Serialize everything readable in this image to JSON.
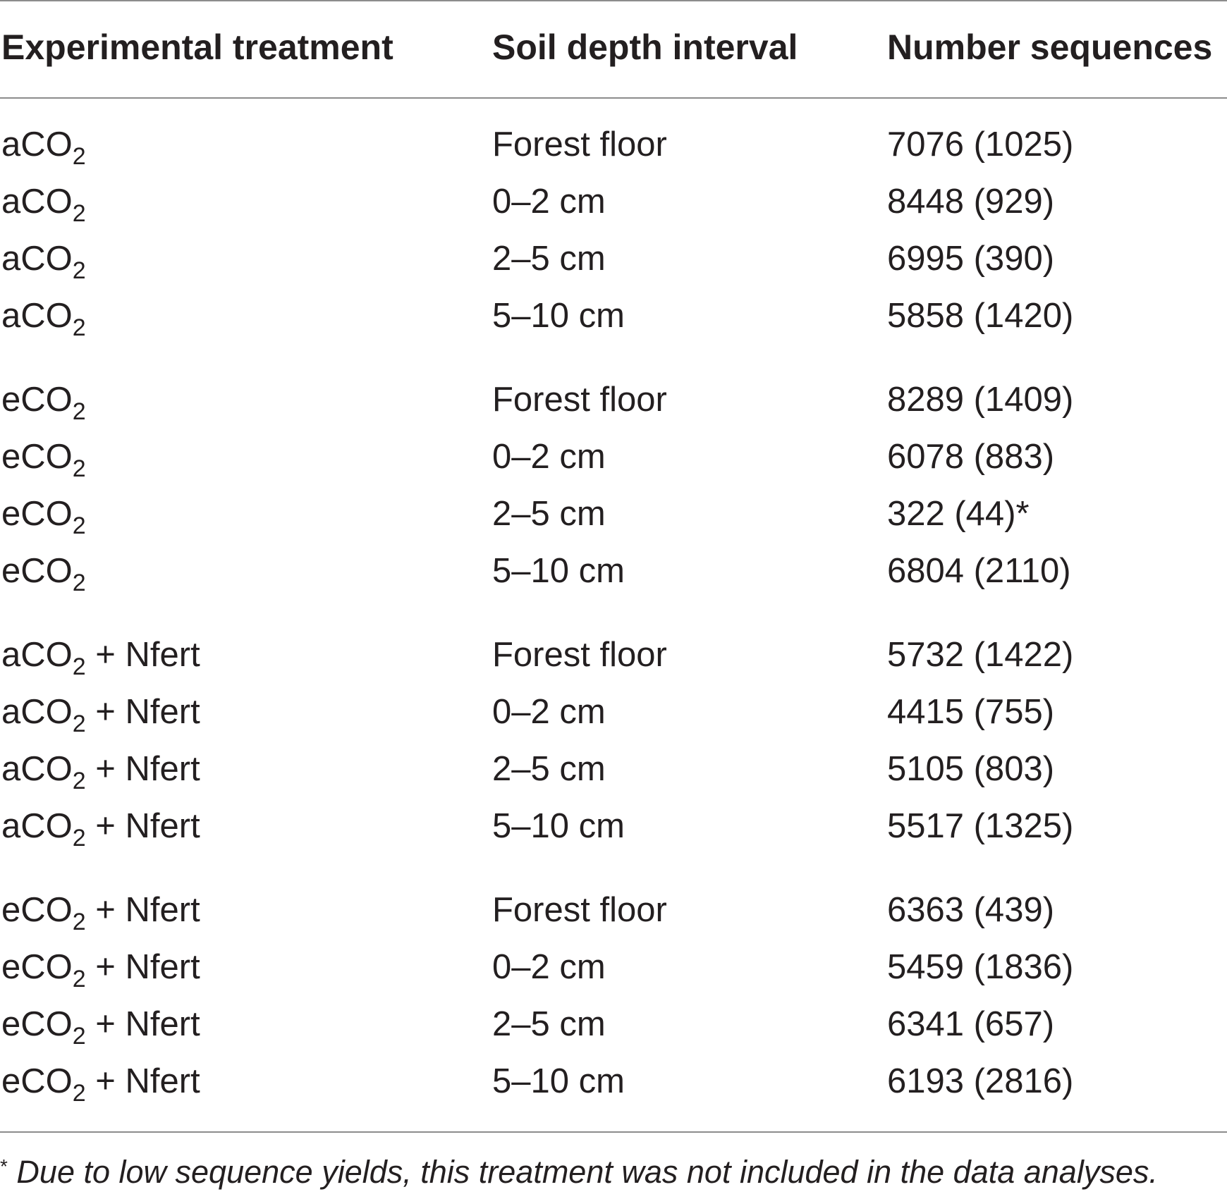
{
  "table": {
    "headers": [
      "Experimental treatment",
      "Soil depth interval",
      "Number sequences"
    ],
    "rows": [
      {
        "treatment": {
          "pre": "aCO",
          "sub": "2",
          "post": ""
        },
        "depth": "Forest floor",
        "sequences": "7076 (1025)"
      },
      {
        "treatment": {
          "pre": "aCO",
          "sub": "2",
          "post": ""
        },
        "depth": "0–2 cm",
        "sequences": "8448 (929)"
      },
      {
        "treatment": {
          "pre": "aCO",
          "sub": "2",
          "post": ""
        },
        "depth": "2–5 cm",
        "sequences": "6995 (390)"
      },
      {
        "treatment": {
          "pre": "aCO",
          "sub": "2",
          "post": ""
        },
        "depth": "5–10 cm",
        "sequences": "5858 (1420)"
      },
      {
        "treatment": {
          "pre": "eCO",
          "sub": "2",
          "post": ""
        },
        "depth": "Forest floor",
        "sequences": "8289 (1409)"
      },
      {
        "treatment": {
          "pre": "eCO",
          "sub": "2",
          "post": ""
        },
        "depth": "0–2 cm",
        "sequences": "6078 (883)"
      },
      {
        "treatment": {
          "pre": "eCO",
          "sub": "2",
          "post": ""
        },
        "depth": "2–5 cm",
        "sequences": "322 (44)*"
      },
      {
        "treatment": {
          "pre": "eCO",
          "sub": "2",
          "post": ""
        },
        "depth": "5–10 cm",
        "sequences": "6804 (2110)"
      },
      {
        "treatment": {
          "pre": "aCO",
          "sub": "2",
          "post": " + Nfert"
        },
        "depth": "Forest floor",
        "sequences": "5732 (1422)"
      },
      {
        "treatment": {
          "pre": "aCO",
          "sub": "2",
          "post": " + Nfert"
        },
        "depth": "0–2 cm",
        "sequences": "4415 (755)"
      },
      {
        "treatment": {
          "pre": "aCO",
          "sub": "2",
          "post": " + Nfert"
        },
        "depth": "2–5 cm",
        "sequences": "5105 (803)"
      },
      {
        "treatment": {
          "pre": "aCO",
          "sub": "2",
          "post": " + Nfert"
        },
        "depth": "5–10 cm",
        "sequences": "5517 (1325)"
      },
      {
        "treatment": {
          "pre": "eCO",
          "sub": "2",
          "post": " + Nfert"
        },
        "depth": "Forest floor",
        "sequences": "6363 (439)"
      },
      {
        "treatment": {
          "pre": "eCO",
          "sub": "2",
          "post": " + Nfert"
        },
        "depth": "0–2 cm",
        "sequences": "5459 (1836)"
      },
      {
        "treatment": {
          "pre": "eCO",
          "sub": "2",
          "post": " + Nfert"
        },
        "depth": "2–5 cm",
        "sequences": "6341 (657)"
      },
      {
        "treatment": {
          "pre": "eCO",
          "sub": "2",
          "post": " + Nfert"
        },
        "depth": "5–10 cm",
        "sequences": "6193 (2816)"
      }
    ]
  },
  "footnote": {
    "marker": "*",
    "text": "Due to low sequence yields, this treatment was not included in the data analyses."
  }
}
